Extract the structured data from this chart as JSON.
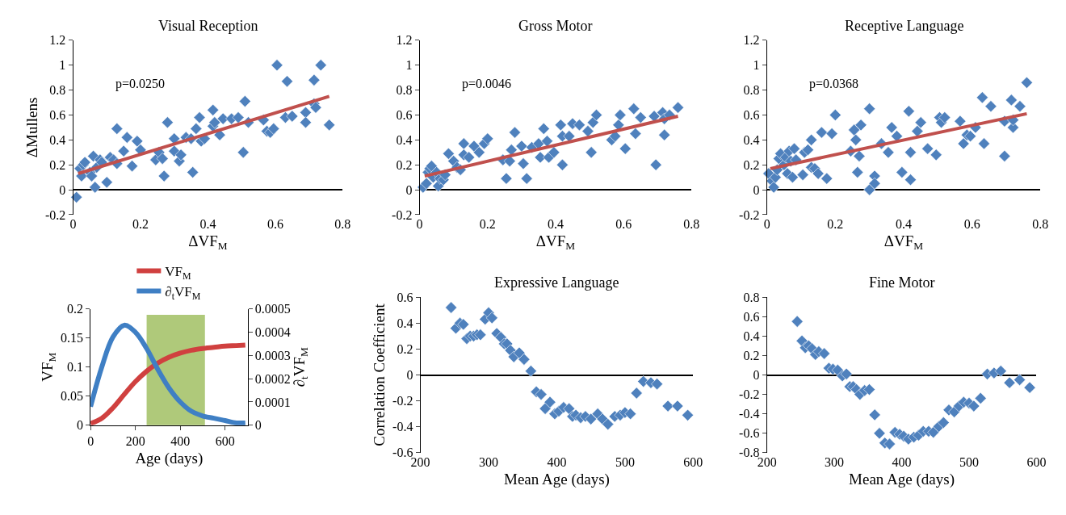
{
  "chart_data": [
    {
      "type": "scatter",
      "title": "Visual Reception",
      "xlabel": "ΔVF$_{M}$",
      "ylabel": "ΔMullens",
      "xlim": [
        0,
        0.8
      ],
      "ylim": [
        -0.2,
        1.2
      ],
      "xticks": [
        0,
        0.2,
        0.4,
        0.6,
        0.8
      ],
      "yticks": [
        -0.2,
        0,
        0.2,
        0.4,
        0.6,
        0.8,
        1,
        1.2
      ],
      "annotations": [
        "p=0.0250"
      ],
      "series": [
        {
          "marker": "diamond",
          "color": "#4f81bd",
          "x": [
            0.01,
            0.02,
            0.025,
            0.03,
            0.035,
            0.05,
            0.055,
            0.06,
            0.065,
            0.07,
            0.08,
            0.085,
            0.1,
            0.11,
            0.12,
            0.13,
            0.13,
            0.15,
            0.16,
            0.175,
            0.19,
            0.2,
            0.245,
            0.255,
            0.265,
            0.27,
            0.28,
            0.3,
            0.3,
            0.315,
            0.32,
            0.335,
            0.35,
            0.355,
            0.365,
            0.375,
            0.38,
            0.39,
            0.415,
            0.415,
            0.42,
            0.435,
            0.445,
            0.47,
            0.49,
            0.505,
            0.51,
            0.52,
            0.565,
            0.575,
            0.585,
            0.595,
            0.605,
            0.63,
            0.635,
            0.65,
            0.69,
            0.69,
            0.715,
            0.715,
            0.72,
            0.735,
            0.76
          ],
          "values": [
            -0.06,
            0.17,
            0.11,
            0.2,
            0.22,
            0.14,
            0.11,
            0.27,
            0.02,
            0.18,
            0.24,
            0.22,
            0.06,
            0.26,
            0.24,
            0.49,
            0.21,
            0.31,
            0.42,
            0.19,
            0.39,
            0.32,
            0.24,
            0.3,
            0.25,
            0.11,
            0.54,
            0.41,
            0.31,
            0.23,
            0.28,
            0.42,
            0.41,
            0.14,
            0.49,
            0.58,
            0.39,
            0.41,
            0.64,
            0.51,
            0.54,
            0.44,
            0.57,
            0.57,
            0.58,
            0.3,
            0.71,
            0.54,
            0.56,
            0.47,
            0.46,
            0.49,
            1.0,
            0.58,
            0.87,
            0.59,
            0.62,
            0.54,
            0.69,
            0.88,
            0.66,
            1.0,
            0.52
          ]
        },
        {
          "type": "line",
          "color": "#c0504d",
          "x": [
            0.015,
            0.76
          ],
          "values": [
            0.13,
            0.75
          ]
        }
      ]
    },
    {
      "type": "scatter",
      "title": "Gross Motor",
      "xlabel": "ΔVF$_{M}$",
      "xlim": [
        0,
        0.8
      ],
      "ylim": [
        -0.2,
        1.2
      ],
      "xticks": [
        0,
        0.2,
        0.4,
        0.6,
        0.8
      ],
      "yticks": [
        -0.2,
        0,
        0.2,
        0.4,
        0.6,
        0.8,
        1,
        1.2
      ],
      "annotations": [
        "p=0.0046"
      ],
      "series": [
        {
          "marker": "diamond",
          "color": "#4f81bd",
          "x": [
            0.01,
            0.02,
            0.025,
            0.03,
            0.035,
            0.04,
            0.05,
            0.055,
            0.06,
            0.07,
            0.075,
            0.085,
            0.1,
            0.11,
            0.12,
            0.13,
            0.13,
            0.145,
            0.16,
            0.175,
            0.19,
            0.2,
            0.245,
            0.255,
            0.265,
            0.27,
            0.28,
            0.3,
            0.305,
            0.315,
            0.33,
            0.35,
            0.355,
            0.365,
            0.375,
            0.38,
            0.395,
            0.415,
            0.42,
            0.42,
            0.44,
            0.45,
            0.47,
            0.495,
            0.505,
            0.51,
            0.52,
            0.565,
            0.575,
            0.585,
            0.59,
            0.605,
            0.63,
            0.635,
            0.65,
            0.69,
            0.695,
            0.715,
            0.72,
            0.72,
            0.735,
            0.76
          ],
          "values": [
            0.02,
            0.05,
            0.14,
            0.17,
            0.19,
            0.1,
            0.14,
            0.03,
            0.09,
            0.08,
            0.12,
            0.29,
            0.23,
            0.18,
            0.16,
            0.37,
            0.28,
            0.26,
            0.35,
            0.3,
            0.37,
            0.41,
            0.24,
            0.09,
            0.23,
            0.32,
            0.46,
            0.35,
            0.21,
            0.09,
            0.34,
            0.37,
            0.26,
            0.49,
            0.39,
            0.26,
            0.3,
            0.52,
            0.43,
            0.2,
            0.43,
            0.53,
            0.52,
            0.47,
            0.3,
            0.54,
            0.6,
            0.4,
            0.43,
            0.52,
            0.6,
            0.33,
            0.65,
            0.45,
            0.58,
            0.59,
            0.2,
            0.62,
            0.57,
            0.44,
            0.6,
            0.66
          ]
        },
        {
          "type": "line",
          "color": "#c0504d",
          "x": [
            0.015,
            0.76
          ],
          "values": [
            0.11,
            0.59
          ]
        }
      ]
    },
    {
      "type": "scatter",
      "title": "Receptive Language",
      "xlabel": "ΔVF$_{M}$",
      "xlim": [
        0,
        0.8
      ],
      "ylim": [
        -0.2,
        1.2
      ],
      "xticks": [
        0,
        0.2,
        0.4,
        0.6,
        0.8
      ],
      "yticks": [
        -0.2,
        0,
        0.2,
        0.4,
        0.6,
        0.8,
        1,
        1.2
      ],
      "annotations": [
        "p=0.0368"
      ],
      "series": [
        {
          "marker": "diamond",
          "color": "#4f81bd",
          "x": [
            0.005,
            0.015,
            0.02,
            0.025,
            0.03,
            0.035,
            0.04,
            0.05,
            0.055,
            0.06,
            0.065,
            0.07,
            0.075,
            0.08,
            0.085,
            0.105,
            0.11,
            0.12,
            0.13,
            0.13,
            0.14,
            0.15,
            0.16,
            0.175,
            0.19,
            0.2,
            0.245,
            0.255,
            0.26,
            0.265,
            0.27,
            0.275,
            0.3,
            0.3,
            0.315,
            0.315,
            0.335,
            0.355,
            0.365,
            0.38,
            0.395,
            0.415,
            0.42,
            0.42,
            0.44,
            0.45,
            0.47,
            0.495,
            0.505,
            0.51,
            0.52,
            0.565,
            0.575,
            0.585,
            0.595,
            0.61,
            0.63,
            0.635,
            0.655,
            0.695,
            0.695,
            0.715,
            0.72,
            0.72,
            0.74,
            0.76
          ],
          "values": [
            0.13,
            0.07,
            0.02,
            0.1,
            0.16,
            0.25,
            0.29,
            0.2,
            0.26,
            0.13,
            0.31,
            0.23,
            0.1,
            0.33,
            0.24,
            0.12,
            0.3,
            0.32,
            0.4,
            0.18,
            0.17,
            0.13,
            0.46,
            0.09,
            0.45,
            0.6,
            0.31,
            0.48,
            0.4,
            0.14,
            0.27,
            0.52,
            0.0,
            0.65,
            0.11,
            0.05,
            0.37,
            0.3,
            0.5,
            0.43,
            0.14,
            0.63,
            0.08,
            0.3,
            0.47,
            0.54,
            0.33,
            0.28,
            0.58,
            0.54,
            0.58,
            0.55,
            0.37,
            0.44,
            0.43,
            0.5,
            0.74,
            0.37,
            0.67,
            0.27,
            0.55,
            0.72,
            0.5,
            0.56,
            0.67,
            0.86
          ]
        },
        {
          "type": "line",
          "color": "#c0504d",
          "x": [
            0.01,
            0.76
          ],
          "values": [
            0.17,
            0.61
          ]
        }
      ]
    },
    {
      "type": "line",
      "xlabel": "Age (days)",
      "ylabel": "VF$_{M}$",
      "y2label": "∂$_{t}$VF$_{M}$",
      "xlim": [
        0,
        700
      ],
      "ylim": [
        0,
        0.2
      ],
      "y2lim": [
        0,
        0.0005
      ],
      "xticks": [
        0,
        200,
        400,
        600
      ],
      "yticks": [
        0,
        0.05,
        0.1,
        0.15,
        0.2
      ],
      "y2ticks": [
        0,
        0.0001,
        0.0002,
        0.0003,
        0.0004,
        0.0005
      ],
      "legend": "top",
      "marker": "none",
      "bands": [
        {
          "axis": "x",
          "from": 250,
          "to": 510,
          "color": "#9bbb59"
        }
      ],
      "series": [
        {
          "name": "VF$_{M}$",
          "color": "#d0403f",
          "x": [
            0,
            50,
            100,
            150,
            200,
            250,
            300,
            350,
            400,
            450,
            500,
            550,
            600,
            650,
            690
          ],
          "values": [
            0.003,
            0.012,
            0.03,
            0.053,
            0.075,
            0.093,
            0.107,
            0.117,
            0.124,
            0.129,
            0.132,
            0.134,
            0.136,
            0.137,
            0.138
          ]
        },
        {
          "name": "∂$_{t}$VF$_{M}$",
          "color": "#3f7fc4",
          "axis": "y2",
          "x": [
            0,
            50,
            100,
            150,
            200,
            250,
            300,
            350,
            400,
            450,
            500,
            550,
            600,
            650,
            690
          ],
          "values": [
            8e-05,
            0.00025,
            0.00038,
            0.00043,
            0.0004,
            0.00033,
            0.00024,
            0.00016,
            0.0001,
            6e-05,
            4e-05,
            3e-05,
            2e-05,
            1e-05,
            1e-05
          ]
        }
      ]
    },
    {
      "type": "scatter",
      "title": "Expressive Language",
      "xlabel": "Mean Age (days)",
      "ylabel": "Correlation Coefficient",
      "xlim": [
        200,
        600
      ],
      "ylim": [
        -0.6,
        0.6
      ],
      "xticks": [
        200,
        300,
        400,
        500,
        600
      ],
      "yticks": [
        -0.6,
        -0.4,
        -0.2,
        0,
        0.2,
        0.4,
        0.6
      ],
      "marker": "diamond",
      "series": [
        {
          "color": "#4f81bd",
          "x": [
            245,
            252,
            258,
            263,
            268,
            273,
            278,
            283,
            288,
            295,
            300,
            305,
            312,
            318,
            323,
            327,
            332,
            337,
            345,
            352,
            362,
            370,
            377,
            383,
            390,
            397,
            403,
            410,
            418,
            423,
            428,
            435,
            442,
            450,
            460,
            467,
            475,
            485,
            493,
            500,
            508,
            517,
            527,
            538,
            547,
            563,
            577,
            592
          ],
          "values": [
            0.52,
            0.36,
            0.4,
            0.39,
            0.28,
            0.3,
            0.3,
            0.31,
            0.31,
            0.43,
            0.48,
            0.44,
            0.32,
            0.29,
            0.24,
            0.24,
            0.19,
            0.14,
            0.17,
            0.12,
            0.03,
            -0.13,
            -0.15,
            -0.26,
            -0.21,
            -0.3,
            -0.28,
            -0.25,
            -0.26,
            -0.32,
            -0.31,
            -0.33,
            -0.32,
            -0.34,
            -0.3,
            -0.34,
            -0.38,
            -0.32,
            -0.31,
            -0.29,
            -0.3,
            -0.14,
            -0.05,
            -0.06,
            -0.07,
            -0.24,
            -0.24,
            -0.31
          ]
        }
      ]
    },
    {
      "type": "scatter",
      "title": "Fine Motor",
      "xlabel": "Mean Age (days)",
      "xlim": [
        200,
        600
      ],
      "ylim": [
        -0.8,
        0.8
      ],
      "xticks": [
        200,
        300,
        400,
        500,
        600
      ],
      "yticks": [
        -0.8,
        -0.6,
        -0.4,
        -0.2,
        0,
        0.2,
        0.4,
        0.6,
        0.8
      ],
      "marker": "diamond",
      "series": [
        {
          "color": "#4f81bd",
          "x": [
            245,
            252,
            257,
            262,
            267,
            272,
            277,
            285,
            292,
            298,
            305,
            312,
            318,
            323,
            328,
            333,
            338,
            345,
            352,
            360,
            367,
            375,
            382,
            390,
            397,
            403,
            410,
            418,
            425,
            432,
            440,
            447,
            455,
            462,
            470,
            478,
            485,
            492,
            500,
            507,
            517,
            527,
            537,
            547,
            560,
            575,
            590
          ],
          "values": [
            0.55,
            0.35,
            0.28,
            0.3,
            0.27,
            0.21,
            0.24,
            0.22,
            0.07,
            0.06,
            0.05,
            -0.01,
            0.01,
            -0.12,
            -0.12,
            -0.15,
            -0.2,
            -0.16,
            -0.15,
            -0.41,
            -0.6,
            -0.7,
            -0.71,
            -0.59,
            -0.61,
            -0.63,
            -0.66,
            -0.64,
            -0.62,
            -0.58,
            -0.58,
            -0.59,
            -0.53,
            -0.49,
            -0.36,
            -0.38,
            -0.32,
            -0.28,
            -0.29,
            -0.32,
            -0.24,
            0.01,
            0.02,
            0.04,
            -0.08,
            -0.05,
            -0.13
          ]
        }
      ]
    }
  ]
}
